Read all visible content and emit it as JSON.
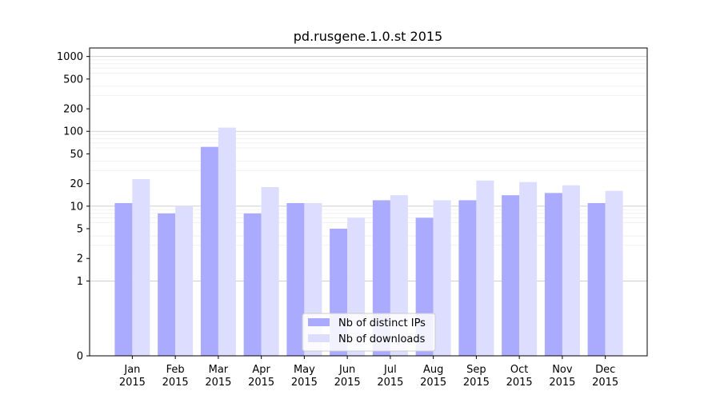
{
  "chart_data": {
    "type": "bar",
    "title": "pd.rusgene.1.0.st 2015",
    "xlabel": "",
    "ylabel": "",
    "y_scale": "symlog",
    "ylim": [
      0,
      1300
    ],
    "y_ticks": [
      0,
      1,
      2,
      5,
      10,
      20,
      50,
      100,
      200,
      500,
      1000
    ],
    "y_tick_labels": [
      "0",
      "1",
      "2",
      "5",
      "10",
      "20",
      "50",
      "100",
      "200",
      "500",
      "1000"
    ],
    "grid": true,
    "legend_position": "bottom-center",
    "categories": [
      {
        "month": "Jan",
        "year": "2015"
      },
      {
        "month": "Feb",
        "year": "2015"
      },
      {
        "month": "Mar",
        "year": "2015"
      },
      {
        "month": "Apr",
        "year": "2015"
      },
      {
        "month": "May",
        "year": "2015"
      },
      {
        "month": "Jun",
        "year": "2015"
      },
      {
        "month": "Jul",
        "year": "2015"
      },
      {
        "month": "Aug",
        "year": "2015"
      },
      {
        "month": "Sep",
        "year": "2015"
      },
      {
        "month": "Oct",
        "year": "2015"
      },
      {
        "month": "Nov",
        "year": "2015"
      },
      {
        "month": "Dec",
        "year": "2015"
      }
    ],
    "series": [
      {
        "name": "Nb of distinct IPs",
        "color": "#aaaaff",
        "values": [
          11,
          8,
          62,
          8,
          11,
          5,
          12,
          7,
          12,
          14,
          15,
          11
        ]
      },
      {
        "name": "Nb of downloads",
        "color": "#ddddff",
        "values": [
          23,
          10,
          112,
          18,
          11,
          7,
          14,
          12,
          22,
          21,
          19,
          16
        ]
      }
    ]
  }
}
